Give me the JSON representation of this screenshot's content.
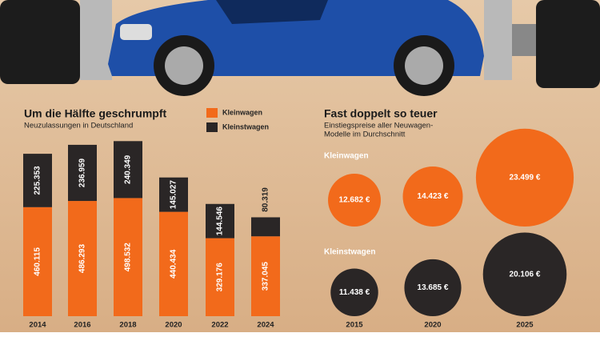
{
  "chart_data": [
    {
      "type": "stacked_bar",
      "title": "Um die Hälfte geschrumpft",
      "subtitle": "Neuzulassungen in Deutschland",
      "categories": [
        "2014",
        "2016",
        "2018",
        "2020",
        "2022",
        "2024"
      ],
      "series": [
        {
          "name": "Kleinwagen",
          "color": "#f26a1b",
          "values": [
            460115,
            486293,
            498532,
            440434,
            329176,
            337045
          ],
          "value_labels": [
            "460.115",
            "486.293",
            "498.532",
            "440.434",
            "329.176",
            "337.045"
          ]
        },
        {
          "name": "Kleinstwagen",
          "color": "#2a2626",
          "values": [
            225353,
            236959,
            240349,
            145027,
            144546,
            80319
          ],
          "value_labels": [
            "225.353",
            "236.959",
            "240.349",
            "145.027",
            "144.546",
            "80.319"
          ]
        }
      ]
    },
    {
      "type": "bubble",
      "title": "Fast doppelt so teuer",
      "subtitle": [
        "Einstiegspreise aller Neuwagen-",
        "Modelle im Durchschnitt"
      ],
      "categories": [
        "2015",
        "2020",
        "2025"
      ],
      "series": [
        {
          "name": "Kleinwagen",
          "color": "#f26a1b",
          "values": [
            12682,
            14423,
            23499
          ],
          "value_labels": [
            "12.682 €",
            "14.423 €",
            "23.499 €"
          ]
        },
        {
          "name": "Kleinstwagen",
          "color": "#2a2626",
          "values": [
            11438,
            13685,
            20106
          ],
          "value_labels": [
            "11.438 €",
            "13.685 €",
            "20.106 €"
          ]
        }
      ]
    }
  ]
}
